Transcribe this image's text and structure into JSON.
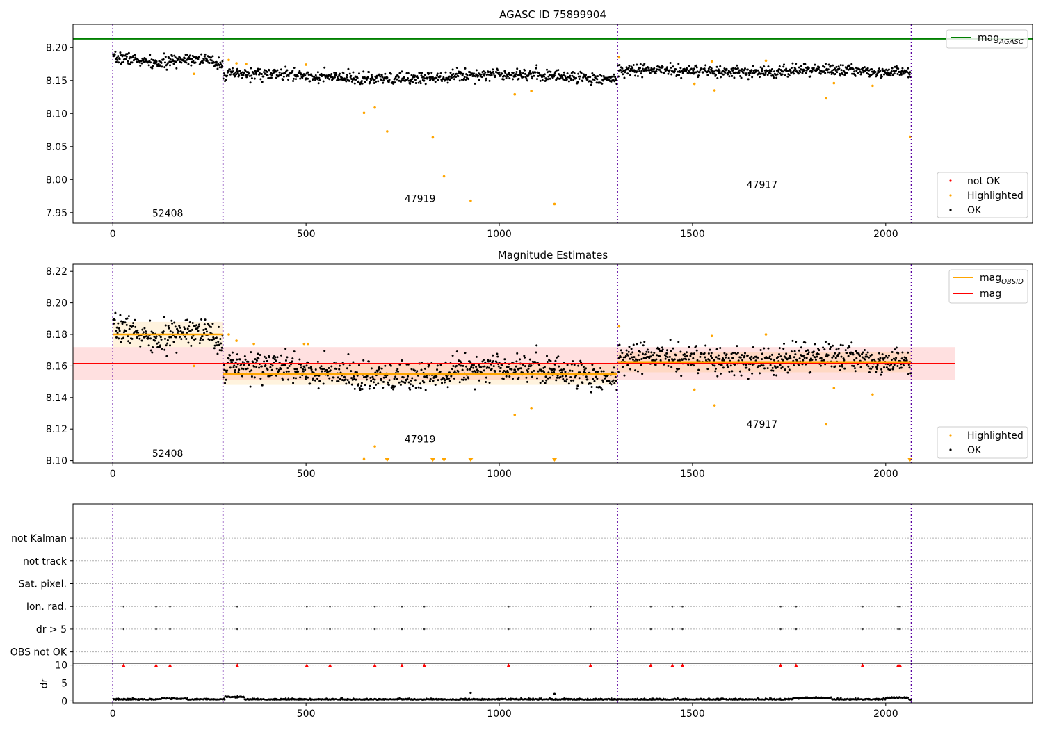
{
  "chart_data": [
    {
      "type": "scatter",
      "title": "AGASC ID 75899904",
      "xlim": [
        -103,
        2380
      ],
      "ylim": [
        7.934,
        8.235
      ],
      "xticks": [
        0,
        500,
        1000,
        1500,
        2000
      ],
      "yticks": [
        7.95,
        8.0,
        8.05,
        8.1,
        8.15,
        8.2
      ],
      "ytick_format": 2,
      "obs_boundaries": [
        0,
        285,
        1306,
        2066
      ],
      "obs_labels": [
        {
          "text": "52408",
          "x": 142,
          "y": 7.944
        },
        {
          "text": "47919",
          "x": 795,
          "y": 7.966
        },
        {
          "text": "47917",
          "x": 1680,
          "y": 7.987
        }
      ],
      "hlines": [
        {
          "name": "mag_AGASC",
          "y": 8.213,
          "color": "#008000"
        }
      ],
      "segments": [
        {
          "x0": 0,
          "x1": 285,
          "mag": 8.18,
          "spread": 0.0045,
          "trend": 0.004
        },
        {
          "x0": 285,
          "x1": 1306,
          "mag": 8.156,
          "spread": 0.0046,
          "trend": 0.004
        },
        {
          "x0": 1306,
          "x1": 2066,
          "mag": 8.164,
          "spread": 0.0045,
          "trend": 0.002
        }
      ],
      "highlighted": [
        {
          "x": 210,
          "y": 8.16
        },
        {
          "x": 300,
          "y": 8.181
        },
        {
          "x": 320,
          "y": 8.176
        },
        {
          "x": 345,
          "y": 8.175
        },
        {
          "x": 500,
          "y": 8.174
        },
        {
          "x": 650,
          "y": 8.101
        },
        {
          "x": 678,
          "y": 8.109
        },
        {
          "x": 710,
          "y": 8.073
        },
        {
          "x": 828,
          "y": 8.064
        },
        {
          "x": 857,
          "y": 8.005
        },
        {
          "x": 926,
          "y": 7.968
        },
        {
          "x": 1040,
          "y": 8.129
        },
        {
          "x": 1083,
          "y": 8.134
        },
        {
          "x": 1143,
          "y": 7.963
        },
        {
          "x": 1310,
          "y": 8.185
        },
        {
          "x": 1505,
          "y": 8.145
        },
        {
          "x": 1550,
          "y": 8.179
        },
        {
          "x": 1557,
          "y": 8.135
        },
        {
          "x": 1690,
          "y": 8.18
        },
        {
          "x": 1846,
          "y": 8.123
        },
        {
          "x": 1866,
          "y": 8.146
        },
        {
          "x": 1966,
          "y": 8.142
        },
        {
          "x": 2063,
          "y": 8.065
        }
      ],
      "legend": {
        "upper": [
          {
            "label": "mag",
            "sub": "AGASC",
            "color": "#008000",
            "kind": "line"
          }
        ],
        "lower": [
          {
            "label": "not OK",
            "color": "#ff0000",
            "kind": "dot"
          },
          {
            "label": "Highlighted",
            "color": "#ffa500",
            "kind": "dot"
          },
          {
            "label": "OK",
            "color": "#000000",
            "kind": "dot"
          }
        ]
      }
    },
    {
      "type": "scatter",
      "title": "Magnitude Estimates",
      "xlim": [
        -103,
        2380
      ],
      "ylim": [
        8.0985,
        8.2245
      ],
      "xticks": [
        0,
        500,
        1000,
        1500,
        2000
      ],
      "yticks": [
        8.1,
        8.12,
        8.14,
        8.16,
        8.18,
        8.2,
        8.22
      ],
      "ytick_format": 2,
      "obs_boundaries": [
        0,
        285,
        1306,
        2066
      ],
      "obs_labels": [
        {
          "text": "52408",
          "x": 142,
          "y": 8.1025
        },
        {
          "text": "47919",
          "x": 795,
          "y": 8.1115
        },
        {
          "text": "47917",
          "x": 1680,
          "y": 8.121
        }
      ],
      "mag": {
        "y": 8.1615,
        "x0": -103,
        "x1": 2180,
        "band": [
          8.151,
          8.172
        ],
        "color": "#ff0000"
      },
      "mag_obsid": [
        {
          "x0": 0,
          "x1": 285,
          "y": 8.18,
          "band": [
            8.172,
            8.188
          ]
        },
        {
          "x0": 285,
          "x1": 1306,
          "y": 8.155,
          "band": [
            8.148,
            8.162
          ]
        },
        {
          "x0": 1306,
          "x1": 2066,
          "y": 8.1625,
          "band": [
            8.156,
            8.169
          ]
        }
      ],
      "highlighted": [
        {
          "x": 210,
          "y": 8.16
        },
        {
          "x": 300,
          "y": 8.18
        },
        {
          "x": 320,
          "y": 8.176
        },
        {
          "x": 365,
          "y": 8.174
        },
        {
          "x": 495,
          "y": 8.174
        },
        {
          "x": 505,
          "y": 8.174
        },
        {
          "x": 650,
          "y": 8.101
        },
        {
          "x": 678,
          "y": 8.109
        },
        {
          "x": 1040,
          "y": 8.129
        },
        {
          "x": 1083,
          "y": 8.133
        },
        {
          "x": 1310,
          "y": 8.185
        },
        {
          "x": 1505,
          "y": 8.145
        },
        {
          "x": 1550,
          "y": 8.179
        },
        {
          "x": 1557,
          "y": 8.135
        },
        {
          "x": 1690,
          "y": 8.18
        },
        {
          "x": 1846,
          "y": 8.123
        },
        {
          "x": 1866,
          "y": 8.146
        },
        {
          "x": 1966,
          "y": 8.142
        }
      ],
      "clipped_below": [
        710,
        828,
        857,
        926,
        1143,
        2063
      ],
      "legend": {
        "upper": [
          {
            "label": "mag",
            "sub": "OBSID",
            "color": "#ffa500",
            "kind": "line"
          },
          {
            "label": "mag",
            "sub": "",
            "color": "#ff0000",
            "kind": "line"
          }
        ],
        "lower": [
          {
            "label": "Highlighted",
            "color": "#ffa500",
            "kind": "dot"
          },
          {
            "label": "OK",
            "color": "#000000",
            "kind": "dot"
          }
        ]
      }
    },
    {
      "type": "scatter",
      "title": "",
      "xlim": [
        -103,
        2380
      ],
      "ylim": [
        -0.5,
        6.5
      ],
      "categories": [
        "OBS not OK",
        "dr > 5",
        "Ion. rad.",
        "Sat. pixel.",
        "not track",
        "not Kalman"
      ],
      "flag_x": [
        28,
        112,
        148,
        322,
        502,
        562,
        678,
        748,
        806,
        1024,
        1236,
        1392,
        1448,
        1474,
        1728,
        1768,
        1940,
        2032,
        2037
      ],
      "flags": {
        "not Kalman": [],
        "not track": [],
        "Sat. pixel.": [],
        "Ion. rad.": "flag_x",
        "dr > 5": "flag_x",
        "OBS not OK": []
      },
      "obs_boundaries": [
        0,
        285,
        1306,
        2066
      ]
    },
    {
      "type": "scatter",
      "title": "",
      "ylabel": "dr",
      "xlim": [
        -103,
        2380
      ],
      "ylim": [
        -0.5,
        10.5
      ],
      "xticks": [
        0,
        500,
        1000,
        1500,
        2000
      ],
      "yticks": [
        0,
        5,
        10
      ],
      "ytick_format": 0,
      "obs_boundaries": [
        0,
        285,
        1306,
        2066
      ],
      "dr_clipped_at": 10,
      "dr_outliers": [
        {
          "x": 926,
          "y": 2.3
        },
        {
          "x": 1143,
          "y": 2.0
        }
      ],
      "dr_bumps": [
        {
          "x0": 120,
          "x1": 190,
          "y": 0.7
        },
        {
          "x0": 290,
          "x1": 340,
          "y": 1.2
        },
        {
          "x0": 1760,
          "x1": 1860,
          "y": 0.9
        },
        {
          "x0": 2000,
          "x1": 2060,
          "y": 1.0
        }
      ]
    }
  ]
}
